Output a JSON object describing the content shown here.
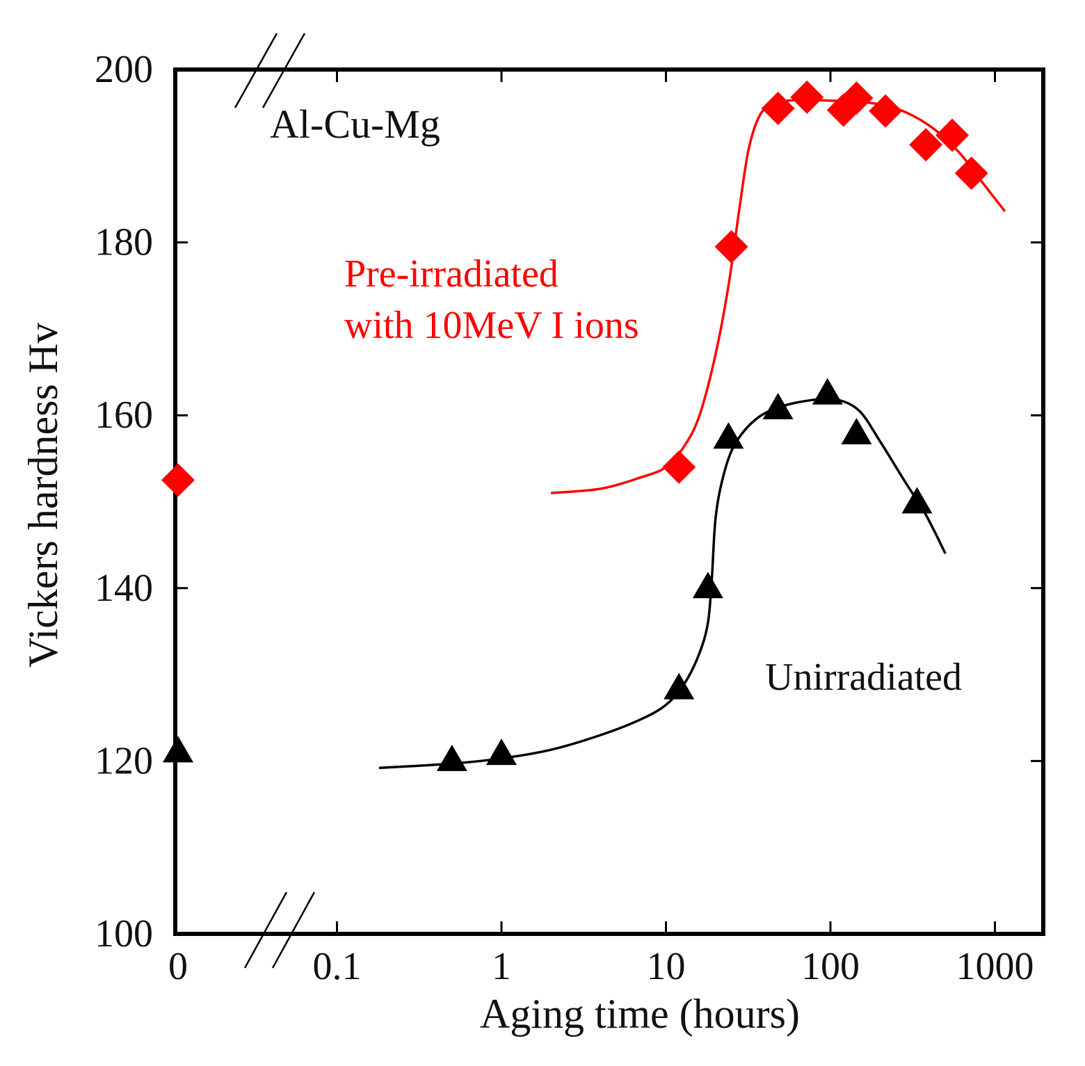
{
  "chart_data": {
    "type": "scatter",
    "xlabel": "Aging time (hours)",
    "ylabel": "Vickers hardness Hv",
    "x_scale": "log",
    "x_break": true,
    "y_break": true,
    "xlim": [
      0.0316,
      1000
    ],
    "ylim": [
      100,
      200
    ],
    "x_ticks": [
      {
        "value": 0,
        "label": "0"
      },
      {
        "value": 0.1,
        "label": "0.1"
      },
      {
        "value": 1,
        "label": "1"
      },
      {
        "value": 10,
        "label": "10"
      },
      {
        "value": 100,
        "label": "100"
      },
      {
        "value": 1000,
        "label": "1000"
      }
    ],
    "y_ticks": [
      100,
      120,
      140,
      160,
      180,
      200
    ],
    "grid": false,
    "annotations": [
      {
        "text": "Al-Cu-Mg",
        "color": "#111111"
      },
      {
        "text": "Pre-irradiated",
        "color": "#ff0000"
      },
      {
        "text": "with 10MeV I ions",
        "color": "#ff0000"
      },
      {
        "text": "Unirradiated",
        "color": "#111111"
      }
    ],
    "series": [
      {
        "marker": "diamond",
        "color": "#ff0000",
        "points": [
          {
            "x": 0,
            "y": 152.5
          },
          {
            "x": 12,
            "y": 154.0
          },
          {
            "x": 25,
            "y": 179.5
          },
          {
            "x": 48,
            "y": 195.5
          },
          {
            "x": 72,
            "y": 196.8
          },
          {
            "x": 120,
            "y": 195.3
          },
          {
            "x": 144,
            "y": 196.7
          },
          {
            "x": 216,
            "y": 195.2
          },
          {
            "x": 380,
            "y": 191.3
          },
          {
            "x": 550,
            "y": 192.4
          },
          {
            "x": 720,
            "y": 188.0
          }
        ],
        "fit": [
          [
            2,
            151.0
          ],
          [
            4,
            151.5
          ],
          [
            7,
            152.8
          ],
          [
            10,
            154.0
          ],
          [
            13,
            156.5
          ],
          [
            16,
            160.0
          ],
          [
            20,
            167.0
          ],
          [
            24,
            175.0
          ],
          [
            28,
            184.0
          ],
          [
            32,
            191.0
          ],
          [
            38,
            195.0
          ],
          [
            48,
            196.2
          ],
          [
            70,
            196.5
          ],
          [
            100,
            196.4
          ],
          [
            150,
            196.3
          ],
          [
            250,
            195.5
          ],
          [
            400,
            193.5
          ],
          [
            600,
            190.5
          ],
          [
            850,
            186.8
          ],
          [
            1150,
            183.6
          ]
        ]
      },
      {
        "marker": "triangle",
        "color": "#000000",
        "points": [
          {
            "x": 0,
            "y": 121.0
          },
          {
            "x": 0.5,
            "y": 120.0
          },
          {
            "x": 1,
            "y": 120.7
          },
          {
            "x": 12,
            "y": 128.3
          },
          {
            "x": 18,
            "y": 140.0
          },
          {
            "x": 24,
            "y": 157.3
          },
          {
            "x": 48,
            "y": 160.7
          },
          {
            "x": 96,
            "y": 162.4
          },
          {
            "x": 144,
            "y": 157.8
          },
          {
            "x": 336,
            "y": 149.8
          }
        ],
        "fit": [
          [
            0.18,
            119.2
          ],
          [
            0.5,
            119.7
          ],
          [
            1,
            120.3
          ],
          [
            2,
            121.3
          ],
          [
            4,
            123.0
          ],
          [
            7,
            124.8
          ],
          [
            10,
            126.5
          ],
          [
            13,
            129.0
          ],
          [
            16,
            132.5
          ],
          [
            18,
            136.0
          ],
          [
            19,
            141.0
          ],
          [
            20,
            148.0
          ],
          [
            22,
            152.5
          ],
          [
            26,
            156.5
          ],
          [
            35,
            159.5
          ],
          [
            50,
            161.0
          ],
          [
            80,
            161.8
          ],
          [
            110,
            161.8
          ],
          [
            150,
            160.5
          ],
          [
            200,
            157.0
          ],
          [
            280,
            152.5
          ],
          [
            380,
            148.5
          ],
          [
            500,
            144.0
          ]
        ]
      }
    ]
  }
}
